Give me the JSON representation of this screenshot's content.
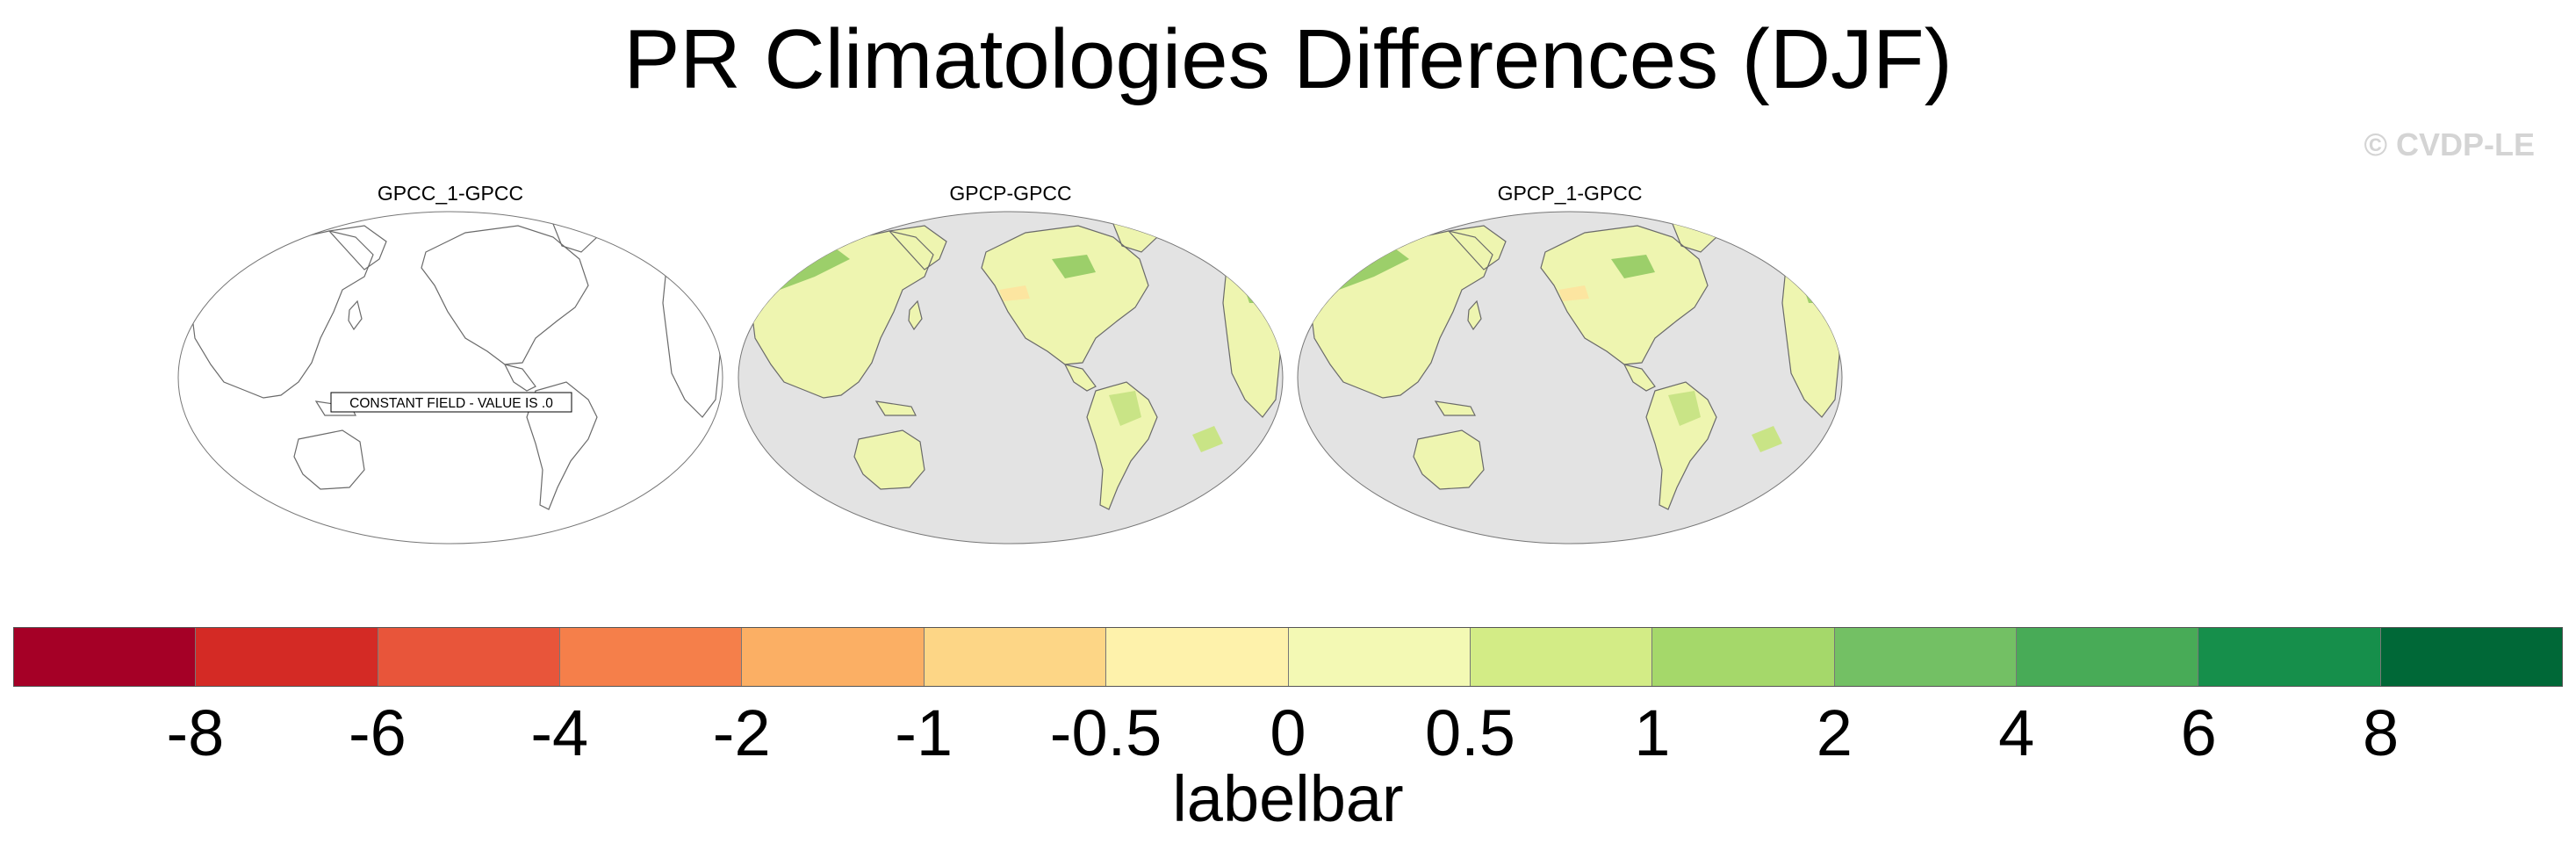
{
  "title": "PR Climatologies Differences (DJF)",
  "watermark": "© CVDP-LE",
  "panels": [
    {
      "title": "GPCC_1-GPCC",
      "background": "#ffffff",
      "constant_field": true,
      "note": "CONSTANT FIELD - VALUE IS .0"
    },
    {
      "title": "GPCP-GPCC",
      "background": "#e3e3e3",
      "constant_field": false
    },
    {
      "title": "GPCP_1-GPCC",
      "background": "#e3e3e3",
      "constant_field": false
    }
  ],
  "colorbar": {
    "label": "labelbar",
    "ticks": [
      "-8",
      "-6",
      "-4",
      "-2",
      "-1",
      "-0.5",
      "0",
      "0.5",
      "1",
      "2",
      "4",
      "6",
      "8"
    ],
    "colors": [
      "#a50026",
      "#d42a25",
      "#e8553a",
      "#f57f4a",
      "#fbaf64",
      "#fdd686",
      "#fef2ab",
      "#f3f9b4",
      "#d3ec86",
      "#a5d86a",
      "#73c064",
      "#48ab57",
      "#168f4b",
      "#006837"
    ]
  },
  "map_colors": {
    "land_fill": "#eef5b0",
    "land_wet": "#c9e486",
    "land_wetter": "#9ccf6a",
    "land_dry": "#fce5a0",
    "coastline": "#6a6a6a"
  }
}
